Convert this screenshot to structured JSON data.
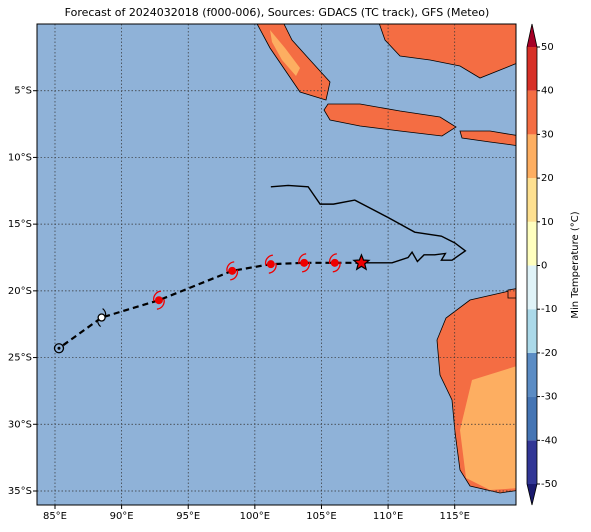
{
  "chart_data": {
    "type": "map",
    "title": "Forecast of 2024032018 (f000-006), Sources: GDACS (TC track), GFS (Meteo)",
    "xlim": [
      83.65,
      119.6
    ],
    "ylim": [
      -36.05,
      0
    ],
    "xticks": [
      {
        "value": 85,
        "label": "85°E"
      },
      {
        "value": 90,
        "label": "90°E"
      },
      {
        "value": 95,
        "label": "95°E"
      },
      {
        "value": 100,
        "label": "100°E"
      },
      {
        "value": 105,
        "label": "105°E"
      },
      {
        "value": 110,
        "label": "110°E"
      },
      {
        "value": 115,
        "label": "115°E"
      }
    ],
    "yticks": [
      {
        "value": -5,
        "label": "5°S"
      },
      {
        "value": -10,
        "label": "10°S"
      },
      {
        "value": -15,
        "label": "15°S"
      },
      {
        "value": -20,
        "label": "20°S"
      },
      {
        "value": -25,
        "label": "25°S"
      },
      {
        "value": -30,
        "label": "30°S"
      },
      {
        "value": -35,
        "label": "35°S"
      }
    ],
    "grid": true,
    "ocean_color": "#8fb2d8",
    "land_color": "#f46d43",
    "land_color_light": "#fdae61",
    "past_track": {
      "color": "#000000",
      "lon": [
        101.2,
        102.5,
        104.0,
        104.9,
        105.9,
        107.5,
        110.0,
        112.0,
        114.0,
        115.0,
        115.8,
        114.8,
        114.0,
        114.3,
        113.5,
        112.7,
        112.2,
        111.8,
        111.5,
        110.3,
        109.1,
        108.0
      ],
      "lat": [
        -12.2,
        -12.1,
        -12.2,
        -13.5,
        -13.5,
        -13.2,
        -14.5,
        -15.6,
        -15.9,
        -16.4,
        -17.0,
        -17.7,
        -17.7,
        -17.2,
        -17.3,
        -17.3,
        -17.8,
        -17.1,
        -17.5,
        -17.9,
        -17.9,
        -17.9
      ]
    },
    "forecast_track": {
      "color": "#000000",
      "lon": [
        108.0,
        106.0,
        103.7,
        101.2,
        98.3,
        92.8,
        88.5,
        85.3
      ],
      "lat": [
        -17.9,
        -17.9,
        -17.9,
        -18.0,
        -18.5,
        -20.7,
        -22.0,
        -24.3
      ],
      "marker": [
        "star",
        "storm",
        "storm",
        "storm",
        "storm",
        "storm",
        "depression",
        "low"
      ]
    },
    "colorbar": {
      "label": "Min Temperature (°C)",
      "lim": [
        -50,
        50
      ],
      "ticks": [
        -50,
        -40,
        -30,
        -20,
        -10,
        0,
        10,
        20,
        30,
        40,
        50
      ],
      "colors": [
        "#313695",
        "#4575b4",
        "#5b8cc4",
        "#abd9e9",
        "#e0f3f8",
        "#ffffbf",
        "#fee090",
        "#fdae61",
        "#f46d43",
        "#d73027"
      ],
      "under": "#1a1a6e",
      "over": "#a50026"
    }
  }
}
